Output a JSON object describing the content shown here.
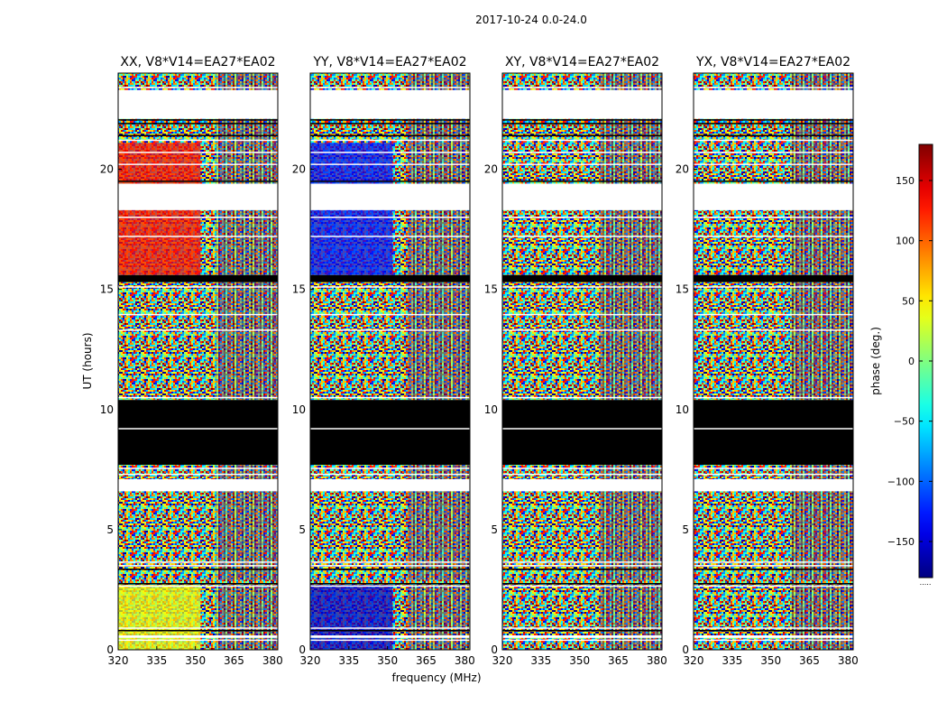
{
  "figure": {
    "suptitle": "2017-10-24 0.0-24.0",
    "xlabel": "frequency (MHz)",
    "ylabel": "UT (hours)",
    "colorbar_label": "phase (deg.)",
    "colorbar_footer": "....."
  },
  "chart_data": {
    "type": "heatmap",
    "colormap": "jet",
    "xlim": [
      320,
      382
    ],
    "ylim": [
      0,
      24
    ],
    "clim": [
      -180,
      180
    ],
    "x_ticks": [
      320,
      335,
      350,
      365,
      380
    ],
    "x_tick_labels": [
      "320",
      "335",
      "350",
      "365",
      "380"
    ],
    "y_ticks": [
      0,
      5,
      10,
      15,
      20
    ],
    "y_tick_labels": [
      "0",
      "5",
      "10",
      "15",
      "20"
    ],
    "colorbar_ticks": [
      150,
      100,
      50,
      0,
      -50,
      -100,
      -150
    ],
    "colorbar_tick_labels": [
      "150",
      "100",
      "50",
      "0",
      "−50",
      "−100",
      "−150"
    ],
    "colors": {
      "frame": "#000000",
      "flagged_rfi": "#000000",
      "no_data": "#ffffff"
    },
    "panels": [
      {
        "title": "XX, V8*V14=EA27*EA02",
        "polarization": "XX",
        "coherent_phase_deg": 130,
        "coherent_phase_lower_deg": 40
      },
      {
        "title": "YY, V8*V14=EA27*EA02",
        "polarization": "YY",
        "coherent_phase_deg": -130,
        "coherent_phase_lower_deg": -150
      },
      {
        "title": "XY, V8*V14=EA27*EA02",
        "polarization": "XY",
        "coherent_phase_deg": null,
        "coherent_phase_lower_deg": null
      },
      {
        "title": "YX, V8*V14=EA27*EA02",
        "polarization": "YX",
        "coherent_phase_deg": null,
        "coherent_phase_lower_deg": null
      }
    ],
    "data_segments_UT_hours": [
      {
        "ut": [
          0.0,
          0.5
        ],
        "state": "data"
      },
      {
        "ut": [
          0.5,
          0.6
        ],
        "state": "no_data"
      },
      {
        "ut": [
          0.6,
          2.7
        ],
        "state": "data"
      },
      {
        "ut": [
          2.7,
          2.9
        ],
        "state": "data"
      },
      {
        "ut": [
          2.9,
          3.6
        ],
        "state": "data"
      },
      {
        "ut": [
          3.6,
          6.6
        ],
        "state": "data"
      },
      {
        "ut": [
          6.6,
          7.1
        ],
        "state": "no_data"
      },
      {
        "ut": [
          7.1,
          7.7
        ],
        "state": "data"
      },
      {
        "ut": [
          7.7,
          10.4
        ],
        "state": "flagged"
      },
      {
        "ut": [
          10.4,
          15.3
        ],
        "state": "data"
      },
      {
        "ut": [
          15.3,
          15.6
        ],
        "state": "flagged"
      },
      {
        "ut": [
          15.6,
          18.3
        ],
        "state": "data"
      },
      {
        "ut": [
          18.3,
          19.4
        ],
        "state": "no_data"
      },
      {
        "ut": [
          19.4,
          21.1
        ],
        "state": "data"
      },
      {
        "ut": [
          21.1,
          22.1
        ],
        "state": "data"
      },
      {
        "ut": [
          22.1,
          23.3
        ],
        "state": "no_data"
      },
      {
        "ut": [
          23.3,
          24.0
        ],
        "state": "data"
      }
    ]
  }
}
